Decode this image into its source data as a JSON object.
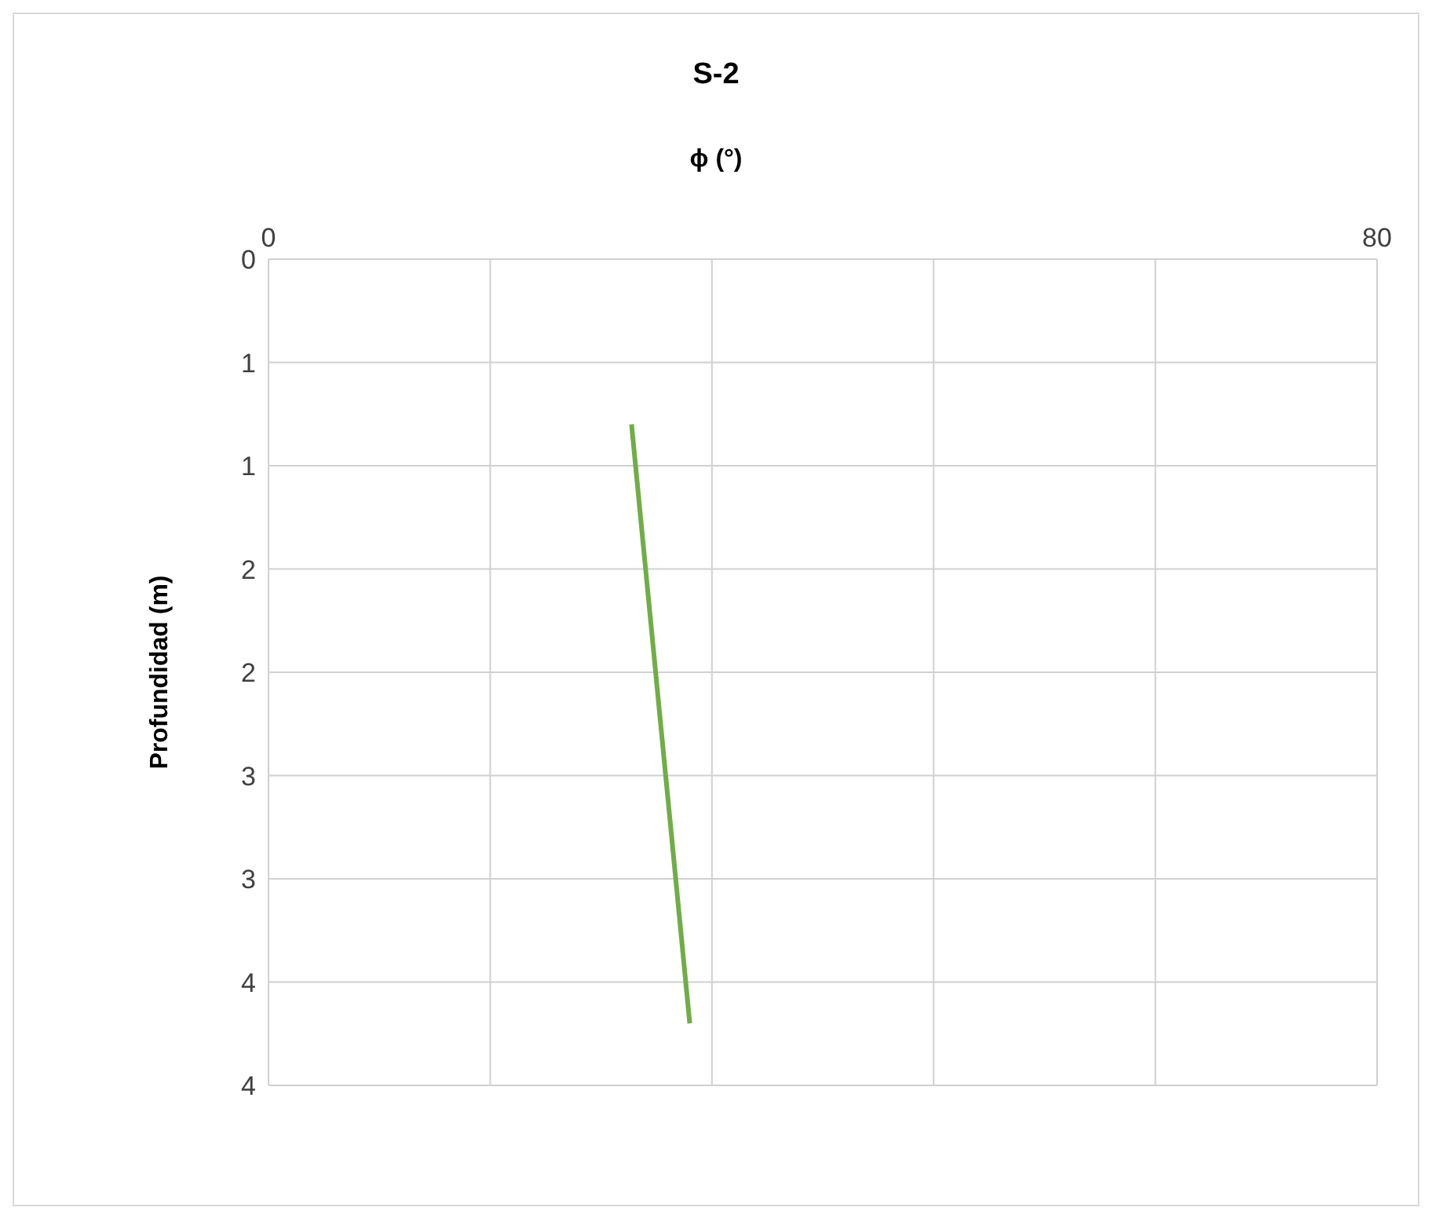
{
  "chart_data": {
    "type": "line",
    "title": "S-2",
    "xlabel": "ϕ (°)",
    "ylabel": "Profundidad (m)",
    "x": [
      26.2,
      30.4
    ],
    "series": [
      {
        "color": "#70ad47",
        "values": [
          0.8,
          3.7
        ]
      }
    ],
    "xlim": [
      0,
      80
    ],
    "xticks": [
      0,
      {
        "value": 16,
        "label": null
      },
      {
        "value": 32,
        "label": null
      },
      {
        "value": 48,
        "label": null
      },
      {
        "value": 64,
        "label": null
      },
      80
    ],
    "ylim": [
      4,
      0
    ],
    "yticks": [
      0,
      {
        "value": 0.5,
        "label": "1"
      },
      1,
      {
        "value": 1.5,
        "label": "2"
      },
      2,
      {
        "value": 2.5,
        "label": "3"
      },
      3,
      {
        "value": 3.5,
        "label": "4"
      },
      4
    ],
    "grid": true,
    "marker": "none",
    "line_style": "solid"
  }
}
